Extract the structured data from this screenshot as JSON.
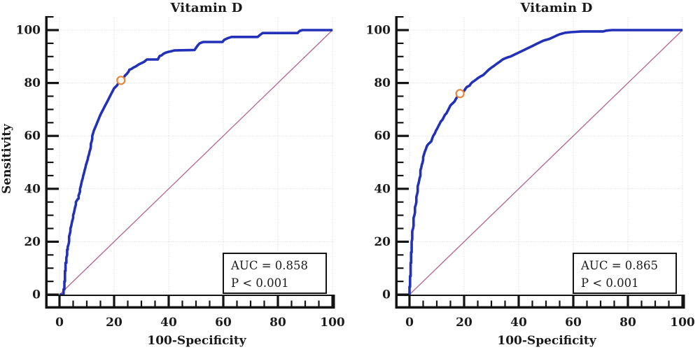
{
  "chart_data": [
    {
      "type": "line",
      "title": "Vitamin D",
      "xlabel": "100-Specificity",
      "ylabel": "Sensitivity",
      "xlim": [
        0,
        100
      ],
      "ylim": [
        0,
        100
      ],
      "xticks": [
        0,
        20,
        40,
        60,
        80,
        100
      ],
      "yticks": [
        0,
        20,
        40,
        60,
        80,
        100
      ],
      "minor_tick_step": 5,
      "grid": true,
      "grid_color": "#d5ded7",
      "axis_color": "#141414",
      "series": [
        {
          "name": "ROC curve",
          "color": "#2231b8",
          "width": 3.6,
          "points": [
            [
              0,
              0
            ],
            [
              1.5,
              0
            ],
            [
              1.5,
              2
            ],
            [
              1.8,
              2
            ],
            [
              1.8,
              5
            ],
            [
              2,
              5
            ],
            [
              2,
              9
            ],
            [
              2.2,
              9
            ],
            [
              2.2,
              12
            ],
            [
              2.5,
              12
            ],
            [
              2.5,
              14
            ],
            [
              2.8,
              15
            ],
            [
              2.8,
              17
            ],
            [
              3,
              17
            ],
            [
              3,
              18
            ],
            [
              3.3,
              19
            ],
            [
              3.5,
              20
            ],
            [
              3.5,
              22
            ],
            [
              3.8,
              23
            ],
            [
              4,
              24
            ],
            [
              4,
              25
            ],
            [
              4.3,
              26
            ],
            [
              4.5,
              27
            ],
            [
              4.7,
              28
            ],
            [
              5,
              29
            ],
            [
              5,
              30
            ],
            [
              5.3,
              31
            ],
            [
              5.5,
              32
            ],
            [
              5.7,
              33
            ],
            [
              6,
              34
            ],
            [
              6,
              35
            ],
            [
              6.3,
              35.5
            ],
            [
              6.6,
              36
            ],
            [
              7,
              36.3
            ],
            [
              7,
              37.5
            ],
            [
              7.2,
              38
            ],
            [
              7.5,
              39
            ],
            [
              7.5,
              40
            ],
            [
              7.8,
              41
            ],
            [
              8,
              42
            ],
            [
              8.2,
              43
            ],
            [
              8.5,
              44
            ],
            [
              8.7,
              45
            ],
            [
              9,
              46
            ],
            [
              9.2,
              47
            ],
            [
              9.5,
              48
            ],
            [
              9.7,
              49
            ],
            [
              10,
              50
            ],
            [
              10.3,
              51
            ],
            [
              10.5,
              52
            ],
            [
              10.8,
              53
            ],
            [
              11,
              54
            ],
            [
              11.3,
              55
            ],
            [
              11.5,
              56
            ],
            [
              11.5,
              57
            ],
            [
              11.8,
              58
            ],
            [
              12,
              59
            ],
            [
              12,
              60
            ],
            [
              12.3,
              61
            ],
            [
              12.6,
              62
            ],
            [
              13,
              63
            ],
            [
              13.4,
              64
            ],
            [
              13.8,
              65
            ],
            [
              14.2,
              66
            ],
            [
              14.6,
              67
            ],
            [
              15,
              68
            ],
            [
              15.5,
              69
            ],
            [
              16,
              70
            ],
            [
              16.5,
              71
            ],
            [
              17,
              72
            ],
            [
              17.5,
              73
            ],
            [
              18,
              74
            ],
            [
              18.5,
              75
            ],
            [
              19,
              76
            ],
            [
              19.5,
              77
            ],
            [
              20,
              78
            ],
            [
              20.5,
              78.5
            ],
            [
              21,
              79
            ],
            [
              21.5,
              79.8
            ],
            [
              22,
              80.3
            ],
            [
              22.5,
              81
            ],
            [
              23,
              81.5
            ],
            [
              23.5,
              82
            ],
            [
              24,
              82.8
            ],
            [
              24.7,
              83.5
            ],
            [
              25.3,
              84.3
            ],
            [
              25.6,
              85
            ],
            [
              26.3,
              85.3
            ],
            [
              27,
              85.8
            ],
            [
              28,
              86.3
            ],
            [
              29,
              87
            ],
            [
              30,
              87.5
            ],
            [
              31,
              88
            ],
            [
              32,
              88.9
            ],
            [
              36,
              88.9
            ],
            [
              36.7,
              90.2
            ],
            [
              37.5,
              90.5
            ],
            [
              38,
              91
            ],
            [
              39,
              91.5
            ],
            [
              40,
              91.8
            ],
            [
              41,
              92
            ],
            [
              42,
              92.3
            ],
            [
              49.5,
              92.5
            ],
            [
              50.5,
              94
            ],
            [
              51.3,
              95
            ],
            [
              52.6,
              95.5
            ],
            [
              59.7,
              95.5
            ],
            [
              60.3,
              96.3
            ],
            [
              61.5,
              96.9
            ],
            [
              63,
              97.4
            ],
            [
              72.6,
              97.4
            ],
            [
              73.5,
              98.2
            ],
            [
              74.4,
              98.9
            ],
            [
              87.2,
              98.9
            ],
            [
              88,
              99.7
            ],
            [
              89,
              100
            ],
            [
              100,
              100
            ]
          ]
        },
        {
          "name": "Reference diagonal",
          "color": "#b4638f",
          "width": 1.3,
          "points": [
            [
              0,
              0
            ],
            [
              100,
              100
            ]
          ]
        }
      ],
      "operating_point": {
        "x": 22.5,
        "y": 81,
        "color": "#e8873c"
      },
      "annotation": {
        "auc_label": "AUC = 0.858",
        "p_label": "P < 0.001"
      }
    },
    {
      "type": "line",
      "title": "Vitamin D",
      "xlabel": "100-Specificity",
      "ylabel": "",
      "xlim": [
        0,
        100
      ],
      "ylim": [
        0,
        100
      ],
      "xticks": [
        0,
        20,
        40,
        60,
        80,
        100
      ],
      "yticks": [
        0,
        20,
        40,
        60,
        80,
        100
      ],
      "minor_tick_step": 5,
      "grid": true,
      "grid_color": "#d5ded7",
      "axis_color": "#141414",
      "series": [
        {
          "name": "ROC curve",
          "color": "#2231b8",
          "width": 3.6,
          "points": [
            [
              0,
              0
            ],
            [
              0,
              3
            ],
            [
              0.2,
              3
            ],
            [
              0.2,
              7
            ],
            [
              0.4,
              7
            ],
            [
              0.4,
              12
            ],
            [
              0.6,
              12
            ],
            [
              0.6,
              16
            ],
            [
              0.8,
              16
            ],
            [
              0.8,
              20
            ],
            [
              1,
              21
            ],
            [
              1,
              24
            ],
            [
              1.3,
              25
            ],
            [
              1.5,
              26
            ],
            [
              1.5,
              29
            ],
            [
              1.8,
              30
            ],
            [
              2,
              31
            ],
            [
              2,
              33
            ],
            [
              2.3,
              34
            ],
            [
              2.5,
              35
            ],
            [
              2.5,
              37
            ],
            [
              2.8,
              38
            ],
            [
              3,
              39
            ],
            [
              3,
              41
            ],
            [
              3.3,
              42
            ],
            [
              3.5,
              43
            ],
            [
              3.7,
              44
            ],
            [
              4,
              45
            ],
            [
              4,
              47
            ],
            [
              4.3,
              48
            ],
            [
              4.5,
              49
            ],
            [
              4.8,
              50
            ],
            [
              5,
              51
            ],
            [
              5,
              52
            ],
            [
              5.3,
              53
            ],
            [
              5.6,
              54
            ],
            [
              6,
              55
            ],
            [
              6.3,
              56
            ],
            [
              6.6,
              56.5
            ],
            [
              7,
              57
            ],
            [
              7.5,
              57.5
            ],
            [
              8,
              58
            ],
            [
              8.3,
              59
            ],
            [
              8.7,
              60
            ],
            [
              9,
              60.5
            ],
            [
              9.3,
              61
            ],
            [
              9.7,
              62
            ],
            [
              10,
              62.5
            ],
            [
              10.5,
              63.5
            ],
            [
              11,
              64.5
            ],
            [
              11.5,
              65.5
            ],
            [
              12,
              66
            ],
            [
              12.5,
              67
            ],
            [
              13,
              68
            ],
            [
              13.5,
              68.5
            ],
            [
              14,
              69.5
            ],
            [
              14.5,
              70.5
            ],
            [
              15,
              71.5
            ],
            [
              15.5,
              72
            ],
            [
              16,
              72.5
            ],
            [
              16.5,
              73
            ],
            [
              17,
              74
            ],
            [
              17.5,
              74.8
            ],
            [
              18,
              75.3
            ],
            [
              18.5,
              75.8
            ],
            [
              19,
              76.2
            ],
            [
              20,
              77
            ],
            [
              20.5,
              77.8
            ],
            [
              21,
              78.5
            ],
            [
              22,
              79
            ],
            [
              22.5,
              79.8
            ],
            [
              23,
              80.3
            ],
            [
              24,
              81
            ],
            [
              25,
              81.8
            ],
            [
              26,
              82.5
            ],
            [
              27,
              83
            ],
            [
              28,
              84
            ],
            [
              29,
              85
            ],
            [
              30,
              85.8
            ],
            [
              31,
              86.5
            ],
            [
              32,
              87.3
            ],
            [
              33,
              88
            ],
            [
              34,
              88.8
            ],
            [
              35,
              89.3
            ],
            [
              36,
              89.7
            ],
            [
              37,
              90
            ],
            [
              38,
              90.5
            ],
            [
              39,
              91
            ],
            [
              40,
              91.5
            ],
            [
              41,
              92
            ],
            [
              42,
              92.5
            ],
            [
              43,
              93
            ],
            [
              44,
              93.5
            ],
            [
              45,
              94
            ],
            [
              46,
              94.5
            ],
            [
              47,
              95
            ],
            [
              48,
              95.5
            ],
            [
              49,
              96
            ],
            [
              50,
              96.3
            ],
            [
              51,
              96.6
            ],
            [
              52,
              97
            ],
            [
              53,
              97.5
            ],
            [
              54,
              98
            ],
            [
              55,
              98.4
            ],
            [
              56,
              98.7
            ],
            [
              57,
              99
            ],
            [
              59,
              99.2
            ],
            [
              61,
              99.35
            ],
            [
              63,
              99.5
            ],
            [
              71,
              99.5
            ],
            [
              72,
              99.8
            ],
            [
              74,
              100
            ],
            [
              100,
              100
            ]
          ]
        },
        {
          "name": "Reference diagonal",
          "color": "#b4638f",
          "width": 1.3,
          "points": [
            [
              0,
              0
            ],
            [
              100,
              100
            ]
          ]
        }
      ],
      "operating_point": {
        "x": 18.5,
        "y": 76,
        "color": "#e8873c"
      },
      "annotation": {
        "auc_label": "AUC = 0.865",
        "p_label": "P < 0.001"
      }
    }
  ]
}
